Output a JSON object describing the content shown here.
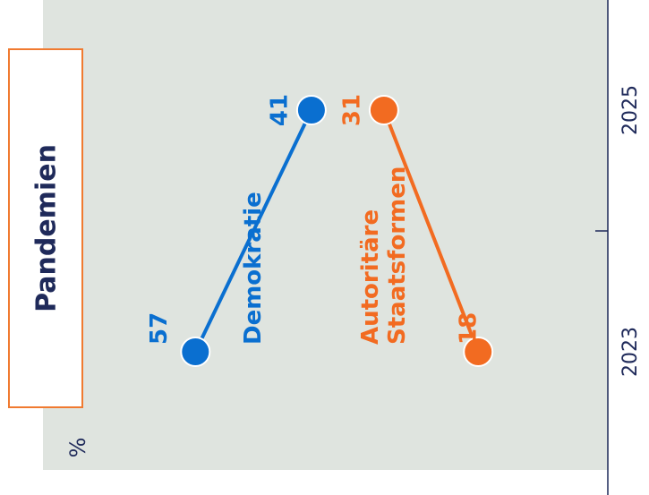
{
  "chart_data": {
    "type": "slope",
    "title": "Pandemien",
    "unit_label": "%",
    "categories": [
      "2023",
      "2025"
    ],
    "series": [
      {
        "name": "Demokratie",
        "color": "#0a6fd0",
        "values": [
          57,
          41
        ]
      },
      {
        "name": "Autoritäre Staatsformen",
        "color": "#f26b21",
        "values": [
          18,
          31
        ]
      }
    ],
    "ylim": [
      0,
      80
    ]
  }
}
